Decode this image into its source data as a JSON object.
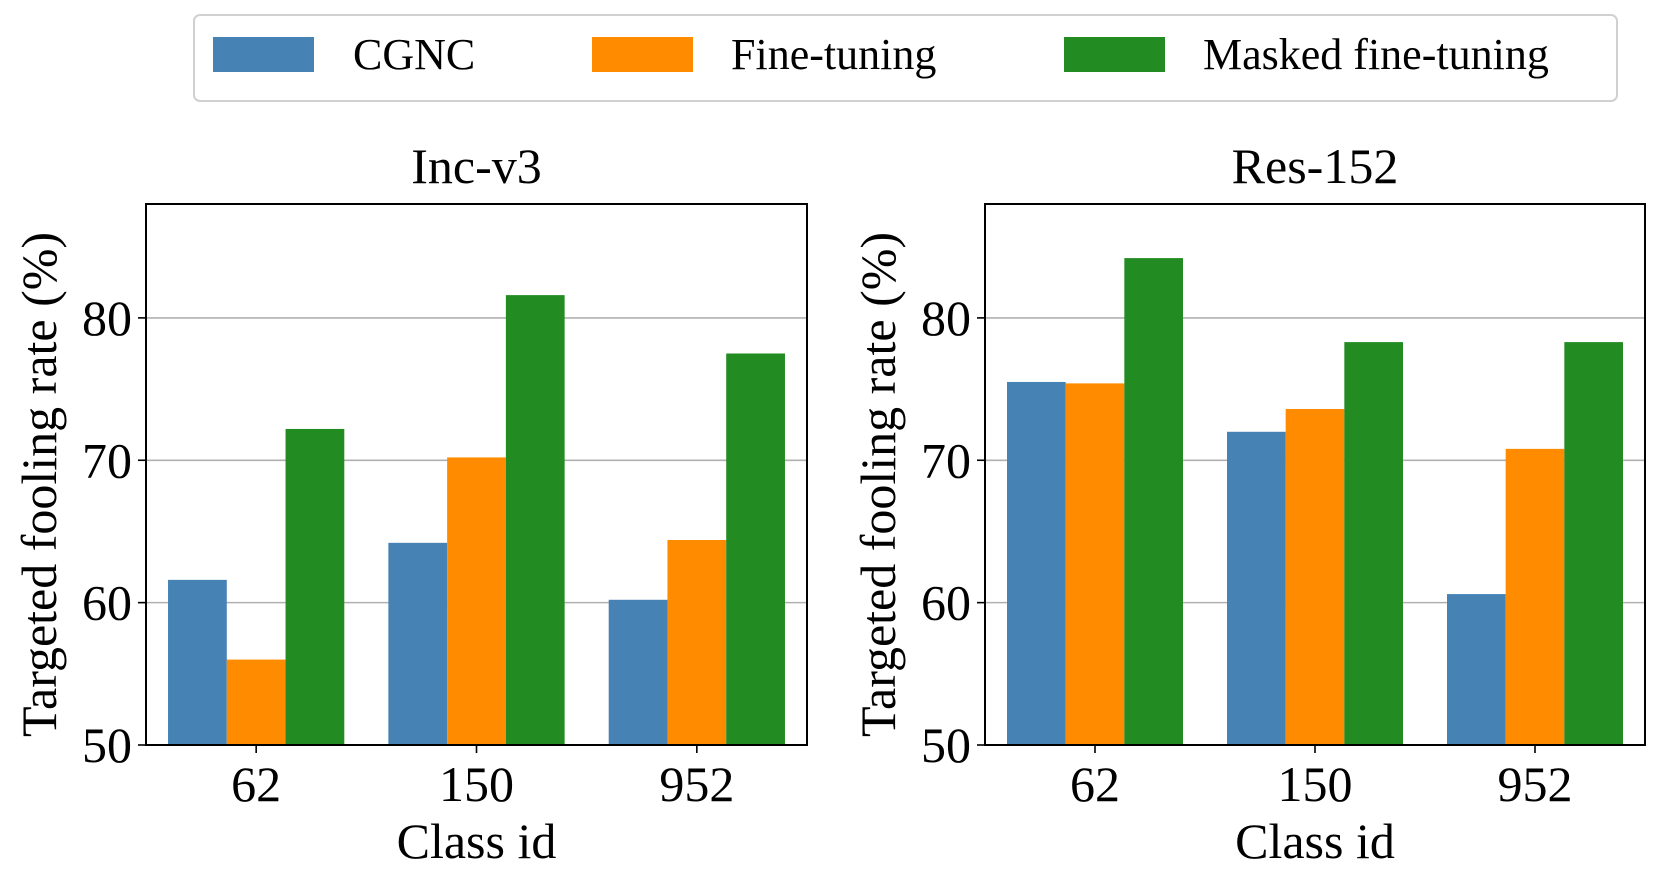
{
  "legend": {
    "entries": [
      "CGNC",
      "Fine-tuning",
      "Masked fine-tuning"
    ],
    "placement": "top-center"
  },
  "colors": {
    "CGNC": "#4682b4",
    "Fine-tuning": "#ff8c00",
    "Masked fine-tuning": "#228b22",
    "grid": "#b0b0b0"
  },
  "chart_data": [
    {
      "type": "bar",
      "title": "Inc-v3",
      "xlabel": "Class id",
      "ylabel": "Targeted fooling rate (%)",
      "categories": [
        "62",
        "150",
        "952"
      ],
      "ylim": [
        50,
        88
      ],
      "yticks": [
        50,
        60,
        70,
        80
      ],
      "grid": "y",
      "series": [
        {
          "name": "CGNC",
          "values": [
            61.6,
            64.2,
            60.2
          ]
        },
        {
          "name": "Fine-tuning",
          "values": [
            56.0,
            70.2,
            64.4
          ]
        },
        {
          "name": "Masked fine-tuning",
          "values": [
            72.2,
            81.6,
            77.5
          ]
        }
      ]
    },
    {
      "type": "bar",
      "title": "Res-152",
      "xlabel": "Class id",
      "ylabel": "Targeted fooling rate (%)",
      "categories": [
        "62",
        "150",
        "952"
      ],
      "ylim": [
        50,
        88
      ],
      "yticks": [
        50,
        60,
        70,
        80
      ],
      "grid": "y",
      "series": [
        {
          "name": "CGNC",
          "values": [
            75.5,
            72.0,
            60.6
          ]
        },
        {
          "name": "Fine-tuning",
          "values": [
            75.4,
            73.6,
            70.8
          ]
        },
        {
          "name": "Masked fine-tuning",
          "values": [
            84.2,
            78.3,
            78.3
          ]
        }
      ]
    }
  ]
}
